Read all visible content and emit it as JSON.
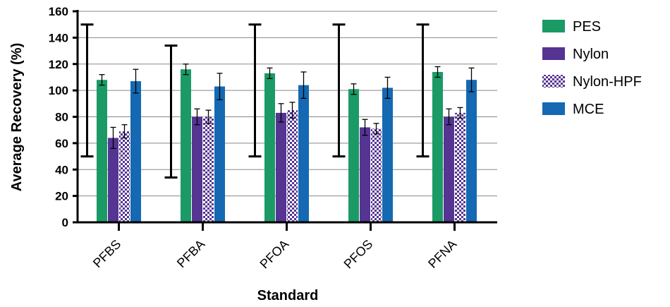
{
  "chart_data": {
    "type": "bar",
    "xlabel": "Standard",
    "ylabel": "Average Recovery (%)",
    "ylim": [
      0,
      160
    ],
    "yticks": [
      0,
      20,
      40,
      60,
      80,
      100,
      120,
      140,
      160
    ],
    "grid": true,
    "legend_position": "right",
    "categories": [
      "PFBS",
      "PFBA",
      "PFOA",
      "PFOS",
      "PFNA"
    ],
    "acceptance_range": [
      [
        50,
        150
      ],
      [
        34,
        134
      ],
      [
        50,
        150
      ],
      [
        50,
        150
      ],
      [
        50,
        150
      ]
    ],
    "series": [
      {
        "name": "PES",
        "color": "#1b9a66",
        "pattern": "solid",
        "values": [
          108,
          116,
          113,
          101,
          114
        ],
        "errors": [
          4,
          4,
          4,
          4,
          4
        ]
      },
      {
        "name": "Nylon",
        "color": "#553492",
        "pattern": "solid",
        "values": [
          64,
          80,
          83,
          72,
          80
        ],
        "errors": [
          8,
          6,
          7,
          6,
          6
        ]
      },
      {
        "name": "Nylon-HPF",
        "color": "#553492",
        "pattern": "checker",
        "values": [
          69,
          80,
          85,
          71,
          83
        ],
        "errors": [
          5,
          5,
          6,
          4,
          4
        ]
      },
      {
        "name": "MCE",
        "color": "#1469b2",
        "pattern": "solid",
        "values": [
          107,
          103,
          104,
          102,
          108
        ],
        "errors": [
          9,
          10,
          10,
          8,
          9
        ]
      }
    ]
  }
}
